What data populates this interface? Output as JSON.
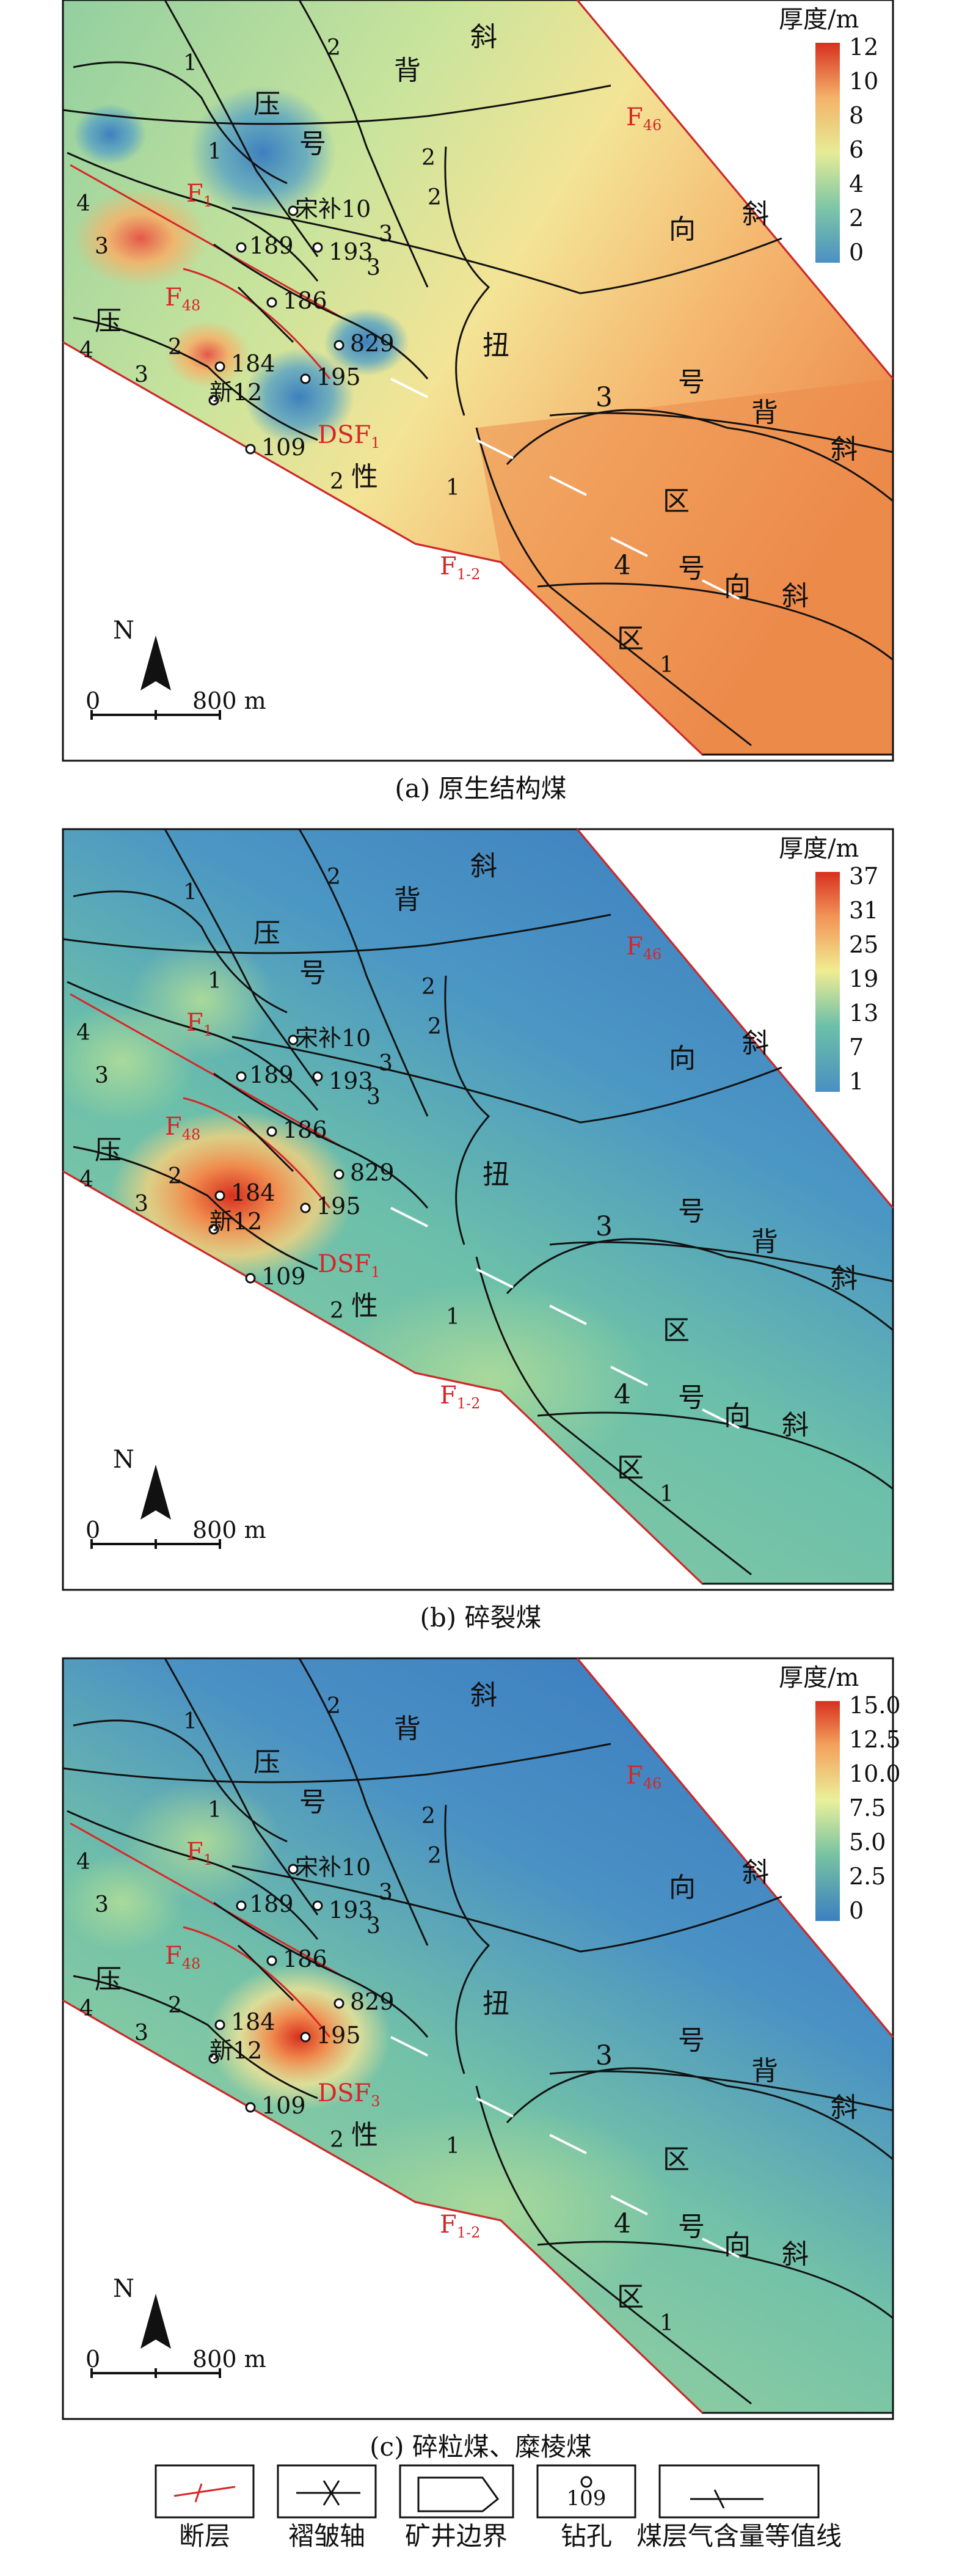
{
  "panels": [
    {
      "caption": "(a) 原生结构煤",
      "legend_title": "厚度/m",
      "legend_ticks": [
        "12",
        "10",
        "8",
        "6",
        "4",
        "2",
        "0"
      ],
      "labels": {
        "ya": "压",
        "hao": "号",
        "bei": "背",
        "xie1": "斜",
        "xiang": "向",
        "xie2": "斜",
        "niu": "扭",
        "xing": "性",
        "qu1": "区",
        "qu2": "区",
        "no3": "3",
        "hao3": "号",
        "bei3": "背",
        "xie3": "斜",
        "no4": "4",
        "hao4": "号",
        "xiang4": "向",
        "xie4": "斜",
        "ya2": "压"
      },
      "faults": {
        "f46": "F",
        "f46sub": "46",
        "f1": "F",
        "f1sub": "1",
        "f48": "F",
        "f48sub": "48",
        "f12": "F",
        "f12sub": "1-2",
        "dsf": "DSF",
        "dsfsub": "1"
      },
      "wells": {
        "w10": "宋补10",
        "w189": "189",
        "w193": "193",
        "w186": "186",
        "w829": "829",
        "w184": "184",
        "w12": "新12",
        "w195": "195",
        "w109": "109"
      },
      "contours": {
        "c1": "1",
        "c2": "2",
        "c3": "2",
        "c4": "3",
        "c5": "4",
        "c6": "3",
        "c7": "2",
        "c8": "4",
        "c9": "3",
        "c10": "2",
        "c11": "1",
        "c12": "1",
        "c13": "2",
        "c14": "1",
        "c15": "3"
      },
      "north": "N",
      "scale_zero": "0",
      "scale_label": "800 m"
    },
    {
      "caption": "(b) 碎裂煤",
      "legend_title": "厚度/m",
      "legend_ticks": [
        "37",
        "31",
        "25",
        "19",
        "13",
        "7",
        "1"
      ],
      "labels": {
        "ya": "压",
        "hao": "号",
        "bei": "背",
        "xie1": "斜",
        "xiang": "向",
        "xie2": "斜",
        "niu": "扭",
        "xing": "性",
        "qu1": "区",
        "qu2": "区",
        "no3": "3",
        "hao3": "号",
        "bei3": "背",
        "xie3": "斜",
        "no4": "4",
        "hao4": "号",
        "xiang4": "向",
        "xie4": "斜",
        "ya2": "压"
      },
      "faults": {
        "f46": "F",
        "f46sub": "46",
        "f1": "F",
        "f1sub": "1",
        "f48": "F",
        "f48sub": "48",
        "f12": "F",
        "f12sub": "1-2",
        "dsf": "DSF",
        "dsfsub": "1"
      },
      "wells": {
        "w10": "宋补10",
        "w189": "189",
        "w193": "193",
        "w186": "186",
        "w829": "829",
        "w184": "184",
        "w12": "新12",
        "w195": "195",
        "w109": "109"
      },
      "contours": {
        "c1": "1",
        "c2": "2",
        "c3": "2",
        "c4": "3",
        "c5": "4",
        "c6": "3",
        "c7": "2",
        "c8": "4",
        "c9": "3",
        "c10": "2",
        "c11": "1",
        "c12": "1",
        "c13": "2",
        "c14": "1",
        "c15": "3"
      },
      "north": "N",
      "scale_zero": "0",
      "scale_label": "800 m"
    },
    {
      "caption": "(c) 碎粒煤、糜棱煤",
      "legend_title": "厚度/m",
      "legend_ticks": [
        "15.0",
        "12.5",
        "10.0",
        "7.5",
        "5.0",
        "2.5",
        "0"
      ],
      "labels": {
        "ya": "压",
        "hao": "号",
        "bei": "背",
        "xie1": "斜",
        "xiang": "向",
        "xie2": "斜",
        "niu": "扭",
        "xing": "性",
        "qu1": "区",
        "qu2": "区",
        "no3": "3",
        "hao3": "号",
        "bei3": "背",
        "xie3": "斜",
        "no4": "4",
        "hao4": "号",
        "xiang4": "向",
        "xie4": "斜",
        "ya2": "压"
      },
      "faults": {
        "f46": "F",
        "f46sub": "46",
        "f1": "F",
        "f1sub": "1",
        "f48": "F",
        "f48sub": "48",
        "f12": "F",
        "f12sub": "1-2",
        "dsf": "DSF",
        "dsfsub": "3"
      },
      "wells": {
        "w10": "宋补10",
        "w189": "189",
        "w193": "193",
        "w186": "186",
        "w829": "829",
        "w184": "184",
        "w12": "新12",
        "w195": "195",
        "w109": "109"
      },
      "contours": {
        "c1": "1",
        "c2": "2",
        "c3": "2",
        "c4": "3",
        "c5": "4",
        "c6": "3",
        "c7": "2",
        "c8": "4",
        "c9": "3",
        "c10": "2",
        "c11": "1",
        "c12": "1",
        "c13": "2",
        "c14": "1",
        "c15": "3"
      },
      "north": "N",
      "scale_zero": "0",
      "scale_label": "800 m"
    }
  ],
  "legend": {
    "fault": "断层",
    "fold": "褶皱轴",
    "boundary": "矿井边界",
    "well": "钻孔",
    "well_sample": "109",
    "contour": "煤层气含量等值线"
  },
  "colors": {
    "fault": "#d62728",
    "ramp_high": "#d7301f",
    "ramp_mid": "#f3ee8c",
    "ramp_low": "#3b7fc0"
  }
}
